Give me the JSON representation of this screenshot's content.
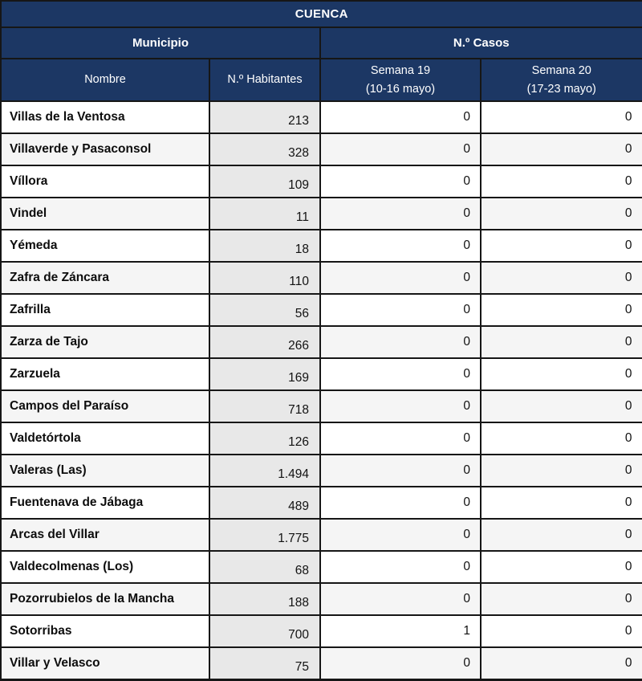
{
  "title": "CUENCA",
  "header": {
    "municipio": "Municipio",
    "casos": "N.º Casos",
    "nombre": "Nombre",
    "habitantes": "N.º Habitantes",
    "semana19_line1": "Semana 19",
    "semana19_line2": "(10-16 mayo)",
    "semana20_line1": "Semana 20",
    "semana20_line2": "(17-23 mayo)"
  },
  "rows": [
    {
      "nombre": "Villas de la Ventosa",
      "habitantes": "213",
      "semana19": "0",
      "semana20": "0"
    },
    {
      "nombre": "Villaverde y Pasaconsol",
      "habitantes": "328",
      "semana19": "0",
      "semana20": "0"
    },
    {
      "nombre": "Víllora",
      "habitantes": "109",
      "semana19": "0",
      "semana20": "0"
    },
    {
      "nombre": "Vindel",
      "habitantes": "11",
      "semana19": "0",
      "semana20": "0"
    },
    {
      "nombre": "Yémeda",
      "habitantes": "18",
      "semana19": "0",
      "semana20": "0"
    },
    {
      "nombre": "Zafra de Záncara",
      "habitantes": "110",
      "semana19": "0",
      "semana20": "0"
    },
    {
      "nombre": "Zafrilla",
      "habitantes": "56",
      "semana19": "0",
      "semana20": "0"
    },
    {
      "nombre": "Zarza de Tajo",
      "habitantes": "266",
      "semana19": "0",
      "semana20": "0"
    },
    {
      "nombre": "Zarzuela",
      "habitantes": "169",
      "semana19": "0",
      "semana20": "0"
    },
    {
      "nombre": "Campos del Paraíso",
      "habitantes": "718",
      "semana19": "0",
      "semana20": "0"
    },
    {
      "nombre": "Valdetórtola",
      "habitantes": "126",
      "semana19": "0",
      "semana20": "0"
    },
    {
      "nombre": "Valeras (Las)",
      "habitantes": "1.494",
      "semana19": "0",
      "semana20": "0"
    },
    {
      "nombre": "Fuentenava de Jábaga",
      "habitantes": "489",
      "semana19": "0",
      "semana20": "0"
    },
    {
      "nombre": "Arcas del Villar",
      "habitantes": "1.775",
      "semana19": "0",
      "semana20": "0"
    },
    {
      "nombre": "Valdecolmenas (Los)",
      "habitantes": "68",
      "semana19": "0",
      "semana20": "0"
    },
    {
      "nombre": "Pozorrubielos de la Mancha",
      "habitantes": "188",
      "semana19": "0",
      "semana20": "0"
    },
    {
      "nombre": "Sotorribas",
      "habitantes": "700",
      "semana19": "1",
      "semana20": "0"
    },
    {
      "nombre": "Villar y Velasco",
      "habitantes": "75",
      "semana19": "0",
      "semana20": "0"
    }
  ],
  "colors": {
    "header_bg": "#1C3764",
    "header_text": "#FFFFFF",
    "row_white": "#FFFFFF",
    "row_alt": "#F5F5F5",
    "habitantes_bg": "#E8E8E8",
    "border": "#161616"
  }
}
